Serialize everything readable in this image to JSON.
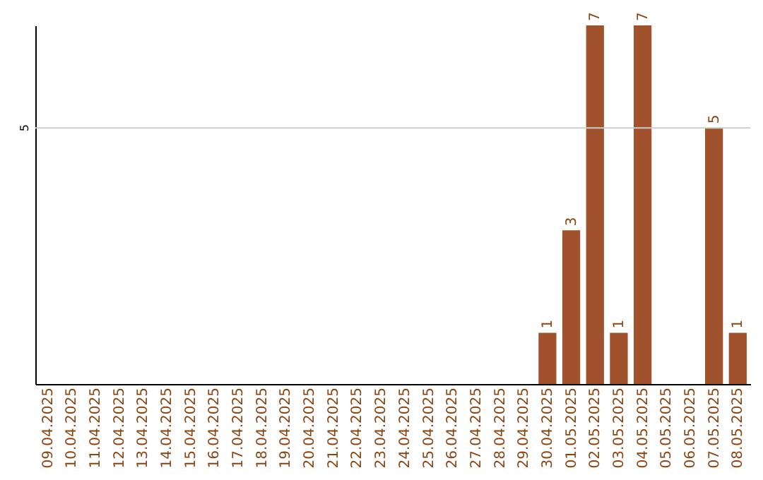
{
  "chart_data": {
    "type": "bar",
    "categories": [
      "09.04.2025",
      "10.04.2025",
      "11.04.2025",
      "12.04.2025",
      "13.04.2025",
      "14.04.2025",
      "15.04.2025",
      "16.04.2025",
      "17.04.2025",
      "18.04.2025",
      "19.04.2025",
      "20.04.2025",
      "21.04.2025",
      "22.04.2025",
      "23.04.2025",
      "24.04.2025",
      "25.04.2025",
      "26.04.2025",
      "27.04.2025",
      "28.04.2025",
      "29.04.2025",
      "30.04.2025",
      "01.05.2025",
      "02.05.2025",
      "03.05.2025",
      "04.05.2025",
      "05.05.2025",
      "06.05.2025",
      "07.05.2025",
      "08.05.2025"
    ],
    "values": [
      null,
      null,
      null,
      null,
      null,
      null,
      null,
      null,
      null,
      null,
      null,
      null,
      null,
      null,
      null,
      null,
      null,
      null,
      null,
      null,
      null,
      1,
      3,
      7,
      1,
      7,
      null,
      null,
      5,
      1
    ],
    "value_labels": [
      null,
      null,
      null,
      null,
      null,
      null,
      null,
      null,
      null,
      null,
      null,
      null,
      null,
      null,
      null,
      null,
      null,
      null,
      null,
      null,
      null,
      "1",
      "3",
      "7",
      "1",
      "7",
      null,
      null,
      "5",
      "1"
    ],
    "color": "#a0522d",
    "ref_lines": [
      {
        "axis": "y",
        "value": 5,
        "label": "5",
        "color": "#cccccc"
      }
    ]
  }
}
